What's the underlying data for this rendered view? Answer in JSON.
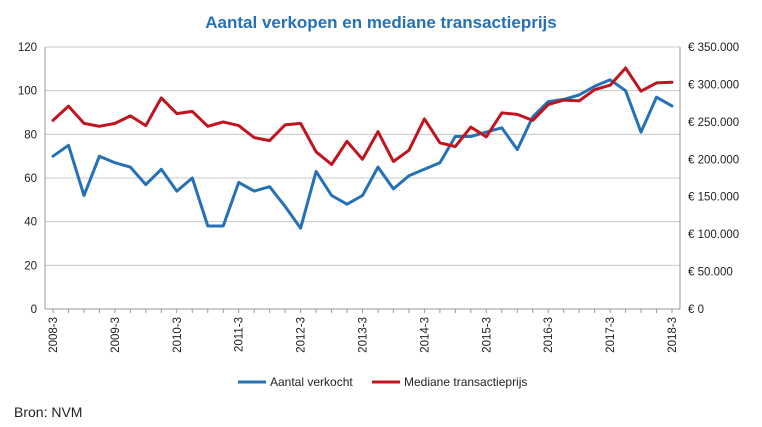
{
  "chart_data": {
    "type": "line",
    "title": "Aantal verkopen en mediane transactieprijs",
    "categories": [
      "2008-3",
      "2008-4",
      "2009-1",
      "2009-2",
      "2009-3",
      "2009-4",
      "2010-1",
      "2010-2",
      "2010-3",
      "2010-4",
      "2011-1",
      "2011-2",
      "2011-3",
      "2011-4",
      "2012-1",
      "2012-2",
      "2012-3",
      "2012-4",
      "2013-1",
      "2013-2",
      "2013-3",
      "2013-4",
      "2014-1",
      "2014-2",
      "2014-3",
      "2014-4",
      "2015-1",
      "2015-2",
      "2015-3",
      "2015-4",
      "2016-1",
      "2016-2",
      "2016-3",
      "2016-4",
      "2017-1",
      "2017-2",
      "2017-3",
      "2017-4",
      "2018-1",
      "2018-2",
      "2018-3"
    ],
    "x_tick_labels": [
      "2008-3",
      "2009-3",
      "2010-3",
      "2011-3",
      "2012-3",
      "2013-3",
      "2014-3",
      "2015-3",
      "2016-3",
      "2017-3",
      "2018-3"
    ],
    "y_left": {
      "ticks": [
        "0",
        "20",
        "40",
        "60",
        "80",
        "100",
        "120"
      ],
      "min": 0,
      "max": 120
    },
    "y_right": {
      "ticks": [
        "€ 0",
        "€ 50.000",
        "€ 100.000",
        "€ 150.000",
        "€ 200.000",
        "€ 250.000",
        "€ 300.000",
        "€ 350.000"
      ],
      "min": 0,
      "max": 350000
    },
    "series": [
      {
        "name": "Aantal verkocht",
        "axis": "left",
        "color": "#2471b8",
        "values": [
          70,
          75,
          52,
          70,
          67,
          65,
          57,
          64,
          54,
          60,
          38,
          38,
          58,
          54,
          56,
          47,
          37,
          63,
          52,
          48,
          52,
          65,
          55,
          61,
          64,
          67,
          79,
          79,
          81,
          83,
          73,
          88,
          95,
          96,
          98,
          102,
          105,
          100,
          81,
          97,
          93
        ]
      },
      {
        "name": "Mediane transactieprijs",
        "axis": "right",
        "color": "#c0141e",
        "values": [
          252000,
          271000,
          248000,
          244000,
          248000,
          258000,
          245000,
          282000,
          261000,
          264000,
          244000,
          250000,
          245000,
          229000,
          225000,
          246000,
          248000,
          210000,
          193000,
          224000,
          200000,
          237000,
          197000,
          212000,
          254000,
          222000,
          217000,
          243000,
          230000,
          262000,
          260000,
          252000,
          273000,
          279000,
          278000,
          293000,
          299000,
          322000,
          291000,
          302000,
          303000
        ]
      }
    ],
    "legend_position": "bottom",
    "grid": true
  },
  "source": "Bron: NVM"
}
